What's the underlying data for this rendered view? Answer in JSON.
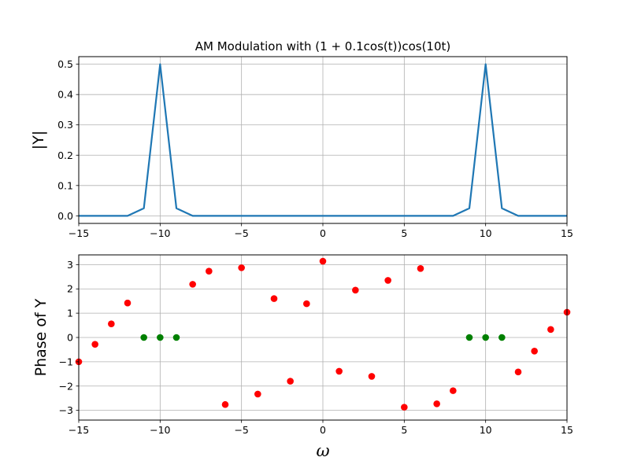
{
  "chart_data": [
    {
      "type": "line",
      "title": "AM Modulation with (1 + 0.1cos(t))cos(10t)",
      "xlabel": "",
      "ylabel": "|Y|",
      "xlim": [
        -15,
        15
      ],
      "ylim": [
        -0.025,
        0.525
      ],
      "grid": true,
      "color": "#1f77b4",
      "xticks": [
        "−15",
        "−10",
        "−5",
        "0",
        "5",
        "10",
        "15"
      ],
      "yticks": [
        "0.0",
        "0.1",
        "0.2",
        "0.3",
        "0.4",
        "0.5"
      ],
      "x": [
        -15,
        -14,
        -13,
        -12,
        -11,
        -10,
        -9,
        -8,
        -7,
        -6,
        -5,
        -4,
        -3,
        -2,
        -1,
        0,
        1,
        2,
        3,
        4,
        5,
        6,
        7,
        8,
        9,
        10,
        11,
        12,
        13,
        14,
        15
      ],
      "y": [
        0,
        0,
        0,
        0,
        0.025,
        0.5,
        0.025,
        0,
        0,
        0,
        0,
        0,
        0,
        0,
        0,
        0,
        0,
        0,
        0,
        0,
        0,
        0,
        0,
        0,
        0.025,
        0.5,
        0.025,
        0,
        0,
        0,
        0
      ]
    },
    {
      "type": "scatter",
      "title": "",
      "xlabel": "ω",
      "ylabel": "Phase of Y",
      "xlim": [
        -15,
        15
      ],
      "ylim": [
        -3.4,
        3.4
      ],
      "grid": true,
      "xticks": [
        "−15",
        "−10",
        "−5",
        "0",
        "5",
        "10",
        "15"
      ],
      "yticks": [
        "−3",
        "−2",
        "−1",
        "0",
        "1",
        "2",
        "3"
      ],
      "series": [
        {
          "color": "#ff0000",
          "x": [
            -15,
            -14,
            -13,
            -12,
            -8,
            -7,
            -6,
            -5,
            -4,
            -3,
            -2,
            -1,
            0,
            1,
            2,
            3,
            4,
            5,
            6,
            7,
            8,
            12,
            13,
            14,
            15
          ],
          "y": [
            -1.0,
            -0.28,
            0.56,
            1.42,
            2.19,
            2.73,
            -2.76,
            2.87,
            -2.33,
            1.6,
            -1.8,
            1.39,
            3.14,
            -1.39,
            1.95,
            -1.6,
            2.35,
            -2.87,
            2.84,
            -2.73,
            -2.19,
            -1.42,
            -0.56,
            0.33,
            1.04
          ]
        },
        {
          "color": "#008000",
          "x": [
            -11,
            -10,
            -9,
            9,
            10,
            11
          ],
          "y": [
            0,
            0,
            0,
            0,
            0,
            0
          ]
        }
      ]
    }
  ]
}
